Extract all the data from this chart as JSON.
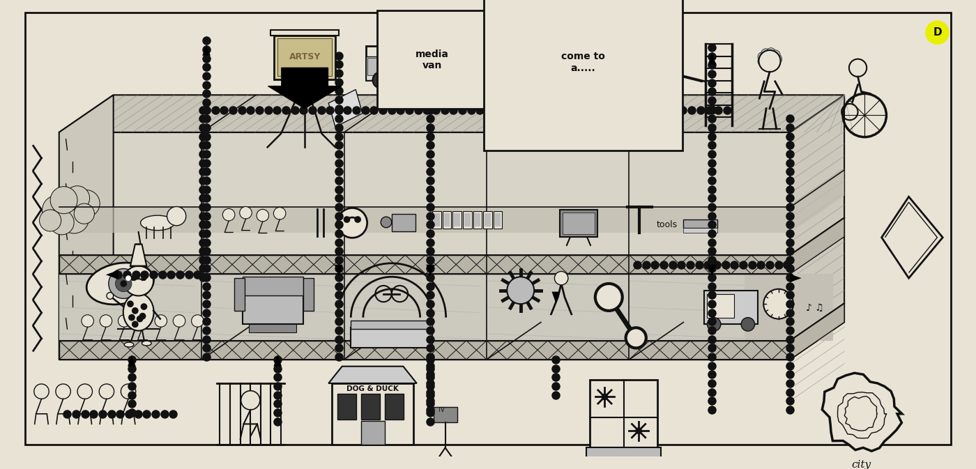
{
  "bg_color": "#e8e3d5",
  "ink": "#111111",
  "dot_c": "#111111",
  "label_D": "D",
  "label_media_van": "media\nvan",
  "label_come_to": "come to\na.....",
  "label_tools": "tools",
  "label_city": "city",
  "label_dog_duck": "DOG & DUCK",
  "label_artsy": "ARTSY",
  "yellow_circle_color": "#e8f000",
  "building_face_color": "#d8d4c8",
  "building_top_color": "#c8c4b8",
  "building_side_color": "#ccc8bc",
  "stripe_color": "#c0bcb0",
  "hatch_dark": "#999999"
}
